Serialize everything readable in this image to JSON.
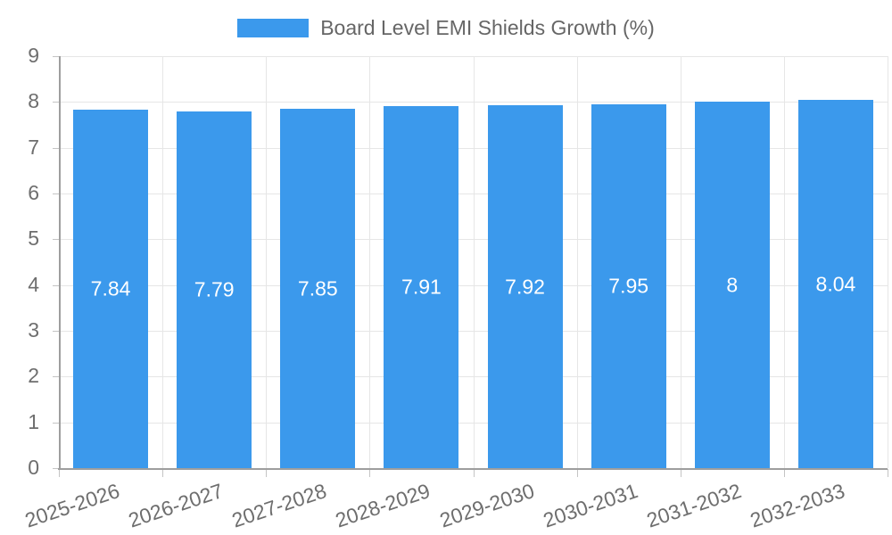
{
  "legend": {
    "label": "Board Level EMI Shields Growth (%)"
  },
  "colors": {
    "bar": "#3b99ec",
    "grid": "#e6e6e6",
    "axis": "#9e9e9e",
    "tick_mark": "#c4c4c4",
    "tick_text": "#6e6e6e",
    "legend_text": "#666666",
    "bar_label_text": "#ffffff",
    "background": "#ffffff"
  },
  "chart_data": {
    "type": "bar",
    "title": "Board Level EMI Shields Growth (%)",
    "categories": [
      "2025-2026",
      "2026-2027",
      "2027-2028",
      "2028-2029",
      "2029-2030",
      "2030-2031",
      "2031-2032",
      "2032-2033"
    ],
    "values": [
      7.84,
      7.79,
      7.85,
      7.91,
      7.92,
      7.95,
      8,
      8.04
    ],
    "bar_labels": [
      "7.84",
      "7.79",
      "7.85",
      "7.91",
      "7.92",
      "7.95",
      "8",
      "8.04"
    ],
    "xlabel": "",
    "ylabel": "",
    "ylim": [
      0,
      9
    ],
    "y_ticks": [
      0,
      1,
      2,
      3,
      4,
      5,
      6,
      7,
      8,
      9
    ],
    "grid": true,
    "legend_position": "top",
    "x_tick_rotation_deg": -18.5
  }
}
